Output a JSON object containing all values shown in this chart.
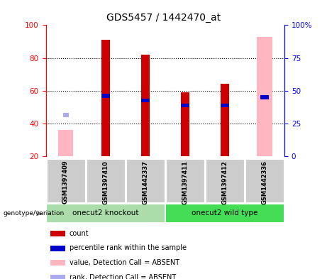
{
  "title": "GDS5457 / 1442470_at",
  "samples": [
    "GSM1397409",
    "GSM1397410",
    "GSM1442337",
    "GSM1397411",
    "GSM1397412",
    "GSM1442336"
  ],
  "group_labels": [
    "onecut2 knockout",
    "onecut2 wild type"
  ],
  "red_values": [
    0,
    91,
    82,
    59,
    64,
    0
  ],
  "blue_values": [
    0,
    57,
    54,
    51,
    51,
    56
  ],
  "pink_values": [
    36,
    0,
    0,
    0,
    0,
    93
  ],
  "lightblue_values": [
    45,
    0,
    0,
    0,
    0,
    0
  ],
  "ylim_left": [
    20,
    100
  ],
  "yticks_left": [
    20,
    40,
    60,
    80,
    100
  ],
  "yticks_right": [
    0,
    25,
    50,
    75,
    100
  ],
  "ytick_labels_right": [
    "0",
    "25",
    "50",
    "75",
    "100%"
  ],
  "colors": {
    "red": "#CC0000",
    "blue": "#0000CC",
    "pink": "#FFB6C1",
    "lightblue": "#AAAAEE",
    "knockout_bg": "#AADDAA",
    "wildtype_bg": "#44DD55",
    "sample_bg": "#CCCCCC"
  },
  "legend_items": [
    {
      "color": "#CC0000",
      "label": "count"
    },
    {
      "color": "#0000CC",
      "label": "percentile rank within the sample"
    },
    {
      "color": "#FFB6C1",
      "label": "value, Detection Call = ABSENT"
    },
    {
      "color": "#AAAAEE",
      "label": "rank, Detection Call = ABSENT"
    }
  ]
}
